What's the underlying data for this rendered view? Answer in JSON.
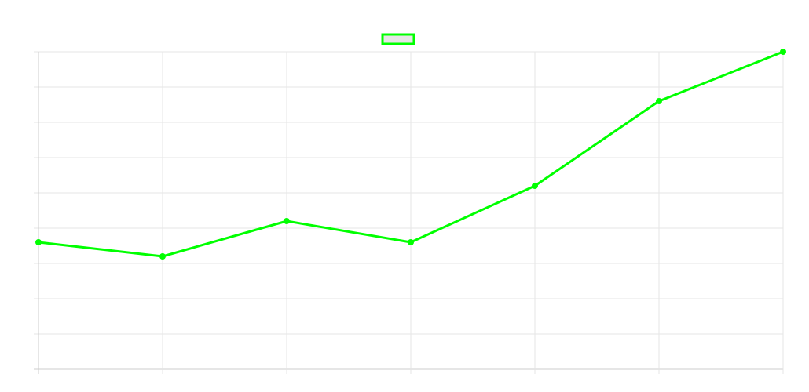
{
  "chart_data": {
    "type": "line",
    "x": [
      "",
      "",
      "",
      "",
      "",
      "",
      ""
    ],
    "series": [
      {
        "values": [
          2.6,
          2.2,
          3.2,
          2.6,
          4.2,
          6.6,
          8.0
        ],
        "color": "#00ff00",
        "fill": "#e6e6e6"
      }
    ],
    "ylim": [
      -1,
      8
    ],
    "grid": true,
    "legend": "top-center",
    "title": "",
    "xlabel": "",
    "ylabel": ""
  }
}
